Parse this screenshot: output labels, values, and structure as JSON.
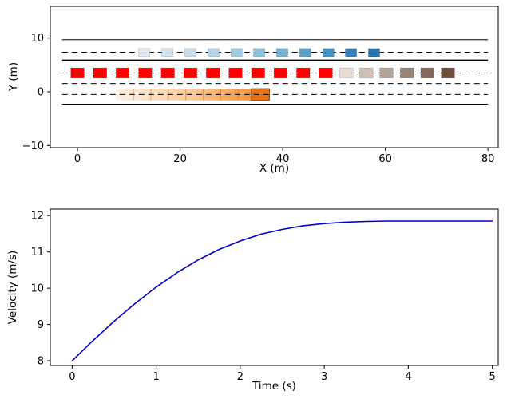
{
  "figure": {
    "background": "#ffffff"
  },
  "chart_data": [
    {
      "type": "scatter",
      "name": "vehicle-trajectory-plot",
      "title": "",
      "xlabel": "X (m)",
      "ylabel": "Y (m)",
      "xlim": [
        -5.3,
        82.0
      ],
      "ylim": [
        -10.4,
        15.9
      ],
      "grid": false,
      "xticks": [
        {
          "v": 0,
          "label": "0"
        },
        {
          "v": 20,
          "label": "20"
        },
        {
          "v": 40,
          "label": "40"
        },
        {
          "v": 60,
          "label": "60"
        },
        {
          "v": 80,
          "label": "80"
        }
      ],
      "yticks": [
        {
          "v": -10,
          "label": "−10"
        },
        {
          "v": 0,
          "label": "0"
        },
        {
          "v": 10,
          "label": "10"
        }
      ],
      "road_x": [
        -3,
        80
      ],
      "road_lines": [
        {
          "y": 9.7,
          "style": "solid",
          "width": 1
        },
        {
          "y": 7.35,
          "style": "dashed",
          "width": 1
        },
        {
          "y": 5.85,
          "style": "solid",
          "width": 2
        },
        {
          "y": 3.5,
          "style": "dashed",
          "width": 1
        },
        {
          "y": 1.55,
          "style": "dashed",
          "width": 1
        },
        {
          "y": -0.5,
          "style": "dashed",
          "width": 1
        },
        {
          "y": -2.3,
          "style": "solid",
          "width": 1
        }
      ],
      "vehicles": [
        {
          "name": "target-lane-vehicle",
          "y": 7.3,
          "w": 2.2,
          "h": 1.5,
          "x": [
            13.0,
            17.5,
            22.0,
            26.5,
            31.0,
            35.4,
            39.9,
            44.4,
            48.9,
            53.3,
            57.8
          ],
          "colors": [
            "#dce9f5",
            "#d2e3f2",
            "#c5dcee",
            "#b4d4e9",
            "#a1cbe2",
            "#8cc0dc",
            "#73b3d6",
            "#5ba3cd",
            "#4493c6",
            "#3483bd",
            "#2473b3"
          ]
        },
        {
          "name": "ego-lane-vehicle-red",
          "y": 3.5,
          "w": 2.6,
          "h": 1.9,
          "x": [
            0.0,
            4.4,
            8.8,
            13.2,
            17.6,
            22.0,
            26.4,
            30.8,
            35.2,
            39.6,
            44.0,
            48.4
          ],
          "colors": [
            "#ff0000",
            "#ff0000",
            "#ff0000",
            "#ff0000",
            "#ff0000",
            "#ff0000",
            "#ff0000",
            "#ff0000",
            "#ff0000",
            "#ff0000",
            "#ff0000",
            "#ff0000"
          ]
        },
        {
          "name": "ego-lane-vehicle-faded",
          "y": 3.5,
          "w": 2.6,
          "h": 1.9,
          "x": [
            52.4,
            56.3,
            60.2,
            64.2,
            68.2,
            72.2
          ],
          "colors": [
            "#e6dbd5",
            "#cebfb7",
            "#b4a198",
            "#9b8376",
            "#85685a",
            "#6d4d3c"
          ]
        }
      ],
      "trail": {
        "y": -0.5,
        "h": 2.2,
        "x_start": 7.5,
        "x_end": 37.5,
        "stops": [
          {
            "offset": "0%",
            "color": "#fdf0e3"
          },
          {
            "offset": "50%",
            "color": "#fdc997"
          },
          {
            "offset": "100%",
            "color": "#f08522"
          }
        ],
        "edge_color": "rgba(190,95,25,0.5)",
        "edge_xs": [
          10.9,
          14.3,
          17.7,
          21.1,
          24.5,
          27.9,
          31.3
        ],
        "head": {
          "x0": 33.9,
          "x1": 37.4,
          "color": "#ec7014",
          "stroke": "rgba(0,0,0,0.45)"
        }
      }
    },
    {
      "type": "line",
      "name": "velocity-profile",
      "title": "",
      "xlabel": "Time (s)",
      "ylabel": "Velocity (m/s)",
      "xlim": [
        -0.26,
        5.07
      ],
      "ylim": [
        7.87,
        12.18
      ],
      "grid": false,
      "xticks": [
        {
          "v": 0,
          "label": "0"
        },
        {
          "v": 1,
          "label": "1"
        },
        {
          "v": 2,
          "label": "2"
        },
        {
          "v": 3,
          "label": "3"
        },
        {
          "v": 4,
          "label": "4"
        },
        {
          "v": 5,
          "label": "5"
        }
      ],
      "yticks": [
        {
          "v": 8,
          "label": "8"
        },
        {
          "v": 9,
          "label": "9"
        },
        {
          "v": 10,
          "label": "10"
        },
        {
          "v": 11,
          "label": "11"
        },
        {
          "v": 12,
          "label": "12"
        }
      ],
      "line_color": "#0000cd",
      "line_width": 1.6,
      "x": [
        0,
        0.25,
        0.5,
        0.75,
        1.0,
        1.25,
        1.5,
        1.75,
        2.0,
        2.25,
        2.5,
        2.75,
        3.0,
        3.25,
        3.5,
        3.75,
        4.0,
        4.25,
        4.5,
        4.75,
        5.0
      ],
      "y": [
        8.0,
        8.56,
        9.09,
        9.58,
        10.03,
        10.43,
        10.78,
        11.07,
        11.3,
        11.49,
        11.62,
        11.72,
        11.78,
        11.82,
        11.84,
        11.85,
        11.85,
        11.85,
        11.85,
        11.85,
        11.85
      ]
    }
  ]
}
